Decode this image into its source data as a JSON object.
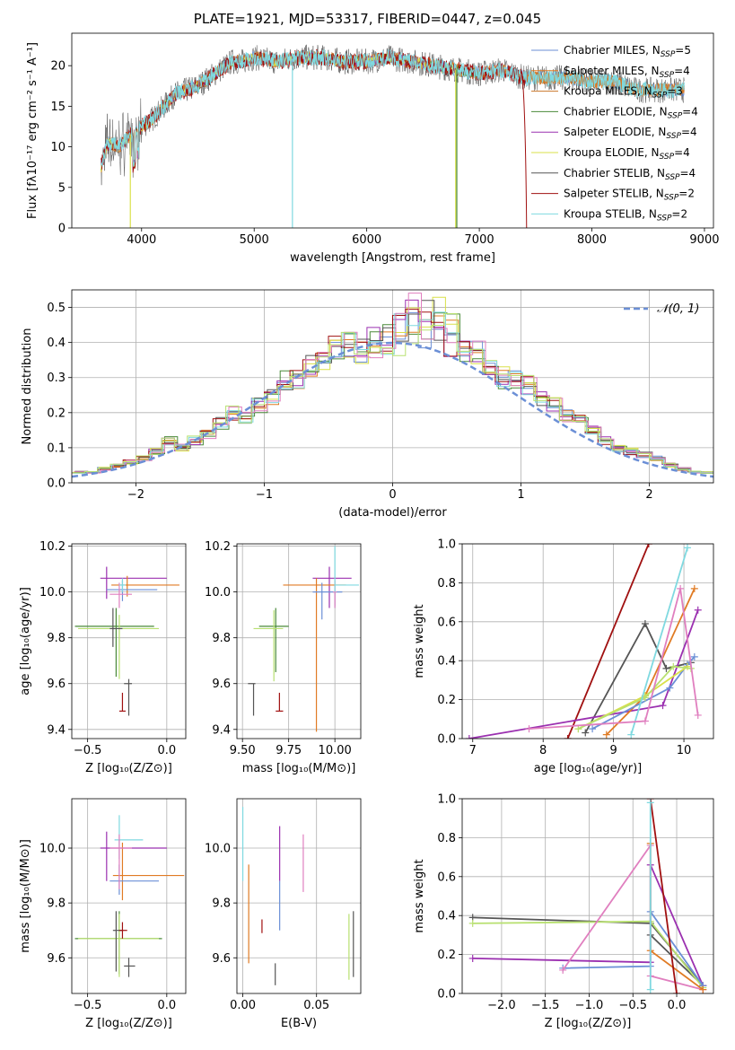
{
  "figure_title": "PLATE=1921, MJD=53317, FIBERID=0447, z=0.045",
  "colors": {
    "chabrier_miles": "#6b8fd6",
    "salpeter_miles": "#e07b24",
    "kroupa_miles": "#c9772a",
    "chabrier_elodie": "#4a8a3a",
    "salpeter_elodie": "#9b30b0",
    "kroupa_elodie": "#d9e04a",
    "chabrier_stelib": "#555555",
    "salpeter_stelib": "#a01010",
    "kroupa_stelib": "#7fd9e0",
    "pink": "#e07fbf",
    "lime": "#b8e070",
    "normal": "#6b8fd6"
  },
  "chart_data": [
    {
      "id": "spectrum",
      "type": "line",
      "title": "PLATE=1921, MJD=53317, FIBERID=0447, z=0.045",
      "xlabel": "wavelength [Angstrom, rest frame]",
      "ylabel": "Flux [fλ10⁻¹⁷ erg cm⁻² s⁻¹ A⁻¹]",
      "xlim": [
        3380,
        9080
      ],
      "ylim": [
        0,
        24
      ],
      "xticks": [
        "4000",
        "5000",
        "6000",
        "7000",
        "8000",
        "9000"
      ],
      "yticks": [
        "0",
        "5",
        "10",
        "15",
        "20"
      ],
      "legend_position": "top-right",
      "legend": [
        "Chabrier MILES, N_SSP=5",
        "Salpeter MILES, N_SSP=4",
        "Kroupa MILES, N_SSP=3",
        "Chabrier ELODIE, N_SSP=4",
        "Salpeter ELODIE, N_SSP=4",
        "Kroupa ELODIE, N_SSP=4",
        "Chabrier STELIB, N_SSP=4",
        "Salpeter STELIB, N_SSP=2",
        "Kroupa STELIB, N_SSP=2"
      ],
      "spectrum_envelope": {
        "x": [
          3640,
          3700,
          3800,
          3900,
          4000,
          4100,
          4200,
          4300,
          4400,
          4500,
          4600,
          4700,
          4800,
          4900,
          5000,
          5200,
          5400,
          5600,
          5800,
          6000,
          6200,
          6400,
          6600,
          6800,
          7000,
          7200,
          7400,
          7600,
          7800,
          8000,
          8200,
          8400,
          8600,
          8800
        ],
        "y": [
          7.5,
          10.5,
          10,
          11.5,
          12.5,
          13.5,
          15,
          16.5,
          17,
          17.5,
          18.5,
          19.5,
          20.5,
          20.5,
          21,
          20.5,
          21,
          21,
          20.5,
          20.5,
          21,
          20.5,
          20,
          19.5,
          19,
          19.5,
          18.5,
          18.5,
          18.5,
          18,
          18,
          17,
          17,
          17
        ]
      }
    },
    {
      "id": "residuals",
      "type": "bar",
      "xlabel": "(data-model)/error",
      "ylabel": "Normed distribution",
      "xlim": [
        -2.5,
        2.5
      ],
      "ylim": [
        0,
        0.55
      ],
      "xticks": [
        "−2",
        "−1",
        "0",
        "1",
        "2"
      ],
      "yticks": [
        "0.0",
        "0.1",
        "0.2",
        "0.3",
        "0.4",
        "0.5"
      ],
      "legend_position": "top-right",
      "legend": [
        "𝒩(0, 1)"
      ],
      "bin_edges_start": -2.5,
      "bin_width": 0.1,
      "histogram": [
        0.03,
        0.03,
        0.04,
        0.05,
        0.06,
        0.07,
        0.09,
        0.12,
        0.1,
        0.12,
        0.14,
        0.17,
        0.2,
        0.19,
        0.22,
        0.25,
        0.29,
        0.3,
        0.33,
        0.36,
        0.38,
        0.4,
        0.38,
        0.4,
        0.41,
        0.42,
        0.45,
        0.43,
        0.44,
        0.4,
        0.38,
        0.37,
        0.33,
        0.3,
        0.3,
        0.28,
        0.24,
        0.22,
        0.19,
        0.18,
        0.15,
        0.12,
        0.1,
        0.09,
        0.08,
        0.07,
        0.05,
        0.04,
        0.03,
        0.03
      ]
    },
    {
      "id": "age_vs_Z",
      "type": "scatter",
      "xlabel": "Z [log₁₀(Z/Z⊙)]",
      "ylabel": "age  [log₁₀(age/yr)]",
      "xlim": [
        -0.6,
        0.12
      ],
      "ylim": [
        9.36,
        10.21
      ],
      "xticks": [
        "−0.5",
        "0.0"
      ],
      "yticks": [
        "9.4",
        "9.6",
        "9.8",
        "10.0",
        "10.2"
      ]
    },
    {
      "id": "age_vs_mass",
      "type": "scatter",
      "xlabel": "mass [log₁₀(M/M⊙)]",
      "ylabel": "",
      "xlim": [
        9.47,
        10.14
      ],
      "ylim": [
        9.36,
        10.21
      ],
      "xticks": [
        "9.50",
        "9.75",
        "10.00"
      ],
      "yticks": [
        "9.4",
        "9.6",
        "9.8",
        "10.0",
        "10.2"
      ]
    },
    {
      "id": "mass_weight_vs_age",
      "type": "line",
      "xlabel": "age  [log₁₀(age/yr)]",
      "ylabel": "mass weight",
      "xlim": [
        6.85,
        10.42
      ],
      "ylim": [
        0,
        1
      ],
      "xticks": [
        "7",
        "8",
        "9",
        "10"
      ],
      "yticks": [
        "0.0",
        "0.2",
        "0.4",
        "0.6",
        "0.8",
        "1.0"
      ]
    },
    {
      "id": "mass_vs_Z",
      "type": "scatter",
      "xlabel": "Z [log₁₀(Z/Z⊙)]",
      "ylabel": "mass [log₁₀(M/M⊙)]",
      "xlim": [
        -0.6,
        0.12
      ],
      "ylim": [
        9.47,
        10.18
      ],
      "xticks": [
        "−0.5",
        "0.0"
      ],
      "yticks": [
        "9.6",
        "9.8",
        "10.0"
      ]
    },
    {
      "id": "mass_vs_ebv",
      "type": "scatter",
      "xlabel": "E(B-V)",
      "ylabel": "",
      "xlim": [
        -0.004,
        0.08
      ],
      "ylim": [
        9.47,
        10.18
      ],
      "xticks": [
        "0.00",
        "0.05"
      ],
      "yticks": [
        "9.6",
        "9.8",
        "10.0"
      ]
    },
    {
      "id": "mass_weight_vs_Z",
      "type": "line",
      "xlabel": "Z [log₁₀(Z/Z⊙)]",
      "ylabel": "mass weight",
      "xlim": [
        -2.45,
        0.42
      ],
      "ylim": [
        0,
        1
      ],
      "xticks": [
        "−2.0",
        "−1.5",
        "−1.0",
        "−0.5",
        "0.0"
      ],
      "yticks": [
        "0.0",
        "0.2",
        "0.4",
        "0.6",
        "0.8",
        "1.0"
      ]
    }
  ]
}
